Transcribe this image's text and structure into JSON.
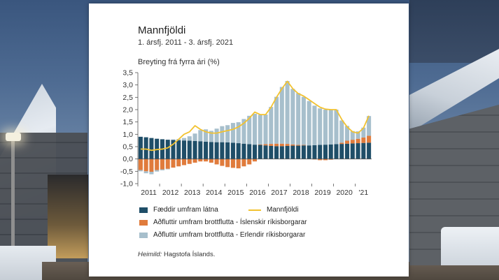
{
  "chart_data": {
    "type": "bar",
    "title": "Mannfjöldi",
    "subtitle": "1. ársfj. 2011 - 3. ársfj. 2021",
    "ylabel": "Breyting frá fyrra ári (%)",
    "xlabel": "",
    "ylim": [
      -1.0,
      3.5
    ],
    "yticks": [
      "-1,0",
      "-0,5",
      "0,0",
      "0,5",
      "1,0",
      "1,5",
      "2,0",
      "2,5",
      "3,0",
      "3,5"
    ],
    "ytick_values": [
      -1.0,
      -0.5,
      0.0,
      0.5,
      1.0,
      1.5,
      2.0,
      2.5,
      3.0,
      3.5
    ],
    "year_labels": [
      "2011",
      "2012",
      "2013",
      "2014",
      "2015",
      "2016",
      "2017",
      "2018",
      "2019",
      "2020",
      "'21"
    ],
    "categories": [
      "2011Q1",
      "2011Q2",
      "2011Q3",
      "2011Q4",
      "2012Q1",
      "2012Q2",
      "2012Q3",
      "2012Q4",
      "2013Q1",
      "2013Q2",
      "2013Q3",
      "2013Q4",
      "2014Q1",
      "2014Q2",
      "2014Q3",
      "2014Q4",
      "2015Q1",
      "2015Q2",
      "2015Q3",
      "2015Q4",
      "2016Q1",
      "2016Q2",
      "2016Q3",
      "2016Q4",
      "2017Q1",
      "2017Q2",
      "2017Q3",
      "2017Q4",
      "2018Q1",
      "2018Q2",
      "2018Q3",
      "2018Q4",
      "2019Q1",
      "2019Q2",
      "2019Q3",
      "2019Q4",
      "2020Q1",
      "2020Q2",
      "2020Q3",
      "2020Q4",
      "2021Q1",
      "2021Q2",
      "2021Q3"
    ],
    "series": [
      {
        "name": "Fæddir umfram látna",
        "kind": "bar",
        "color": "#1f4e68",
        "values": [
          0.9,
          0.88,
          0.85,
          0.82,
          0.8,
          0.78,
          0.77,
          0.76,
          0.75,
          0.74,
          0.73,
          0.72,
          0.7,
          0.69,
          0.68,
          0.68,
          0.67,
          0.66,
          0.64,
          0.62,
          0.6,
          0.58,
          0.57,
          0.55,
          0.53,
          0.52,
          0.52,
          0.53,
          0.54,
          0.54,
          0.55,
          0.55,
          0.56,
          0.57,
          0.58,
          0.59,
          0.6,
          0.61,
          0.62,
          0.63,
          0.64,
          0.65,
          0.66
        ]
      },
      {
        "name": "Aðfluttir umfram brottflutta - Íslenskir ríkisborgarar",
        "kind": "bar",
        "color": "#e07b3c",
        "values": [
          -0.45,
          -0.5,
          -0.52,
          -0.45,
          -0.42,
          -0.4,
          -0.35,
          -0.3,
          -0.25,
          -0.2,
          -0.15,
          -0.1,
          -0.1,
          -0.15,
          -0.22,
          -0.28,
          -0.33,
          -0.36,
          -0.38,
          -0.3,
          -0.22,
          -0.1,
          0.02,
          0.05,
          0.08,
          0.1,
          0.1,
          0.08,
          0.05,
          0.03,
          0.02,
          0.0,
          -0.02,
          -0.05,
          -0.05,
          -0.03,
          0.0,
          0.05,
          0.12,
          0.15,
          0.18,
          0.22,
          0.28
        ]
      },
      {
        "name": "Aðfluttir umfram brottflutta - Erlendir ríkisborgarar",
        "kind": "bar",
        "color": "#a7bfcc",
        "values": [
          -0.05,
          -0.08,
          -0.1,
          -0.06,
          -0.04,
          -0.02,
          0.02,
          0.05,
          0.1,
          0.18,
          0.3,
          0.45,
          0.5,
          0.45,
          0.55,
          0.65,
          0.7,
          0.8,
          0.85,
          1.0,
          1.15,
          1.25,
          1.2,
          1.2,
          1.5,
          1.9,
          2.3,
          2.55,
          2.25,
          2.1,
          1.95,
          1.8,
          1.6,
          1.48,
          1.42,
          1.42,
          1.4,
          0.9,
          0.6,
          0.35,
          0.3,
          0.4,
          0.8
        ]
      },
      {
        "name": "Mannfjöldi",
        "kind": "line",
        "color": "#f2c230",
        "values": [
          0.4,
          0.4,
          0.35,
          0.38,
          0.4,
          0.45,
          0.6,
          0.8,
          1.0,
          1.1,
          1.35,
          1.2,
          1.1,
          1.05,
          1.05,
          1.1,
          1.15,
          1.2,
          1.3,
          1.45,
          1.65,
          1.9,
          1.8,
          1.8,
          2.1,
          2.5,
          2.85,
          3.15,
          2.85,
          2.65,
          2.55,
          2.4,
          2.25,
          2.1,
          2.02,
          2.0,
          2.0,
          1.6,
          1.3,
          1.1,
          1.05,
          1.25,
          1.75
        ]
      }
    ],
    "grid": false,
    "legend_position": "bottom"
  },
  "source": {
    "label": "Heimild:",
    "text": "Hagstofa Íslands."
  }
}
